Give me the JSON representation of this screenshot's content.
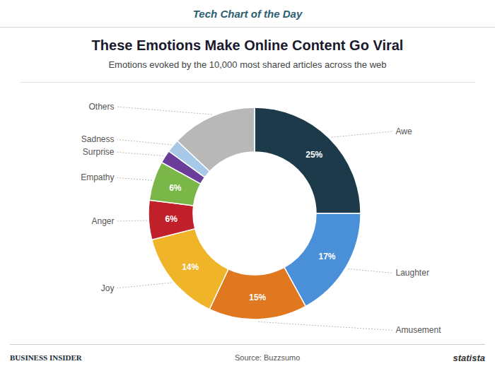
{
  "chart_data": {
    "type": "donut",
    "title": "These Emotions Make Online Content Go Viral",
    "subtitle": "Emotions evoked by the 10,000 most shared articles across the web",
    "categories": [
      "Awe",
      "Laughter",
      "Amusement",
      "Joy",
      "Anger",
      "Empathy",
      "Surprise",
      "Sadness",
      "Others"
    ],
    "values": [
      25,
      17,
      15,
      14,
      6,
      6,
      2,
      2,
      13
    ],
    "value_labels": [
      "25%",
      "17%",
      "15%",
      "14%",
      "6%",
      "6%",
      null,
      null,
      null
    ],
    "colors": [
      "#1c3a4a",
      "#4a90d9",
      "#e07820",
      "#f0b429",
      "#c0202a",
      "#7ab648",
      "#6a3d9a",
      "#a8c8e8",
      "#b8b8b8"
    ],
    "data_labels": true,
    "annotations": [
      "Tech",
      "Chart of the Day",
      "BUSINESS INSIDER",
      "Source: Buzzsumo",
      "statista"
    ]
  }
}
